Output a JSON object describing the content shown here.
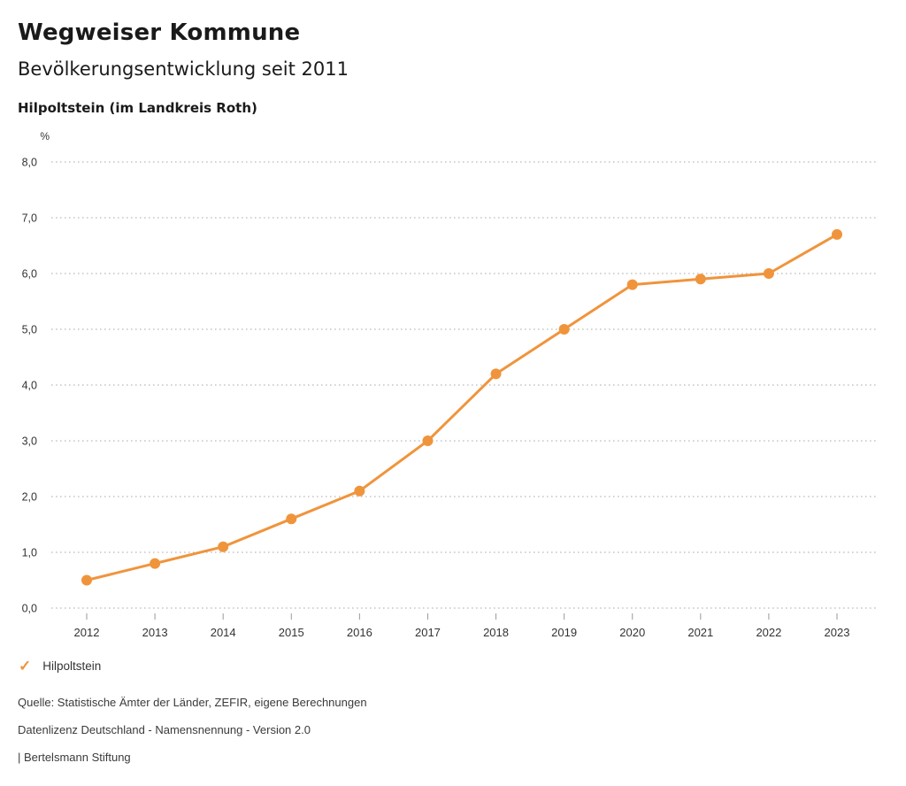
{
  "header": {
    "title": "Wegweiser Kommune",
    "subtitle": "Bevölkerungsentwicklung seit 2011",
    "region": "Hilpoltstein (im Landkreis Roth)"
  },
  "chart_data": {
    "type": "line",
    "title": "Bevölkerungsentwicklung seit 2011",
    "unit_label": "%",
    "categories": [
      "2012",
      "2013",
      "2014",
      "2015",
      "2016",
      "2017",
      "2018",
      "2019",
      "2020",
      "2021",
      "2022",
      "2023"
    ],
    "series": [
      {
        "name": "Hilpoltstein",
        "values": [
          0.5,
          0.8,
          1.1,
          1.6,
          2.1,
          3.0,
          4.2,
          5.0,
          5.8,
          5.9,
          6.0,
          6.7
        ],
        "color": "#F0943C"
      }
    ],
    "xlabel": "",
    "ylabel": "%",
    "ylim": [
      0,
      8
    ],
    "ytick_step": 1,
    "decimal_separator": ",",
    "grid": "horizontal-dotted",
    "legend_position": "bottom-left",
    "marker": "circle"
  },
  "legend": {
    "check_glyph": "✓",
    "items": [
      {
        "label": "Hilpoltstein",
        "color": "#F0943C"
      }
    ]
  },
  "footer": {
    "source": "Quelle: Statistische Ämter der Länder, ZEFIR, eigene Berechnungen",
    "license": "Datenlizenz Deutschland - Namensnennung - Version 2.0",
    "attribution": "| Bertelsmann Stiftung"
  },
  "colors": {
    "accent_orange": "#F0943C",
    "gridline": "#bbbbbb",
    "tick": "#999999",
    "axis_text": "#333333",
    "title_text": "#1a1a1a",
    "footer_text": "#3a3a3a",
    "background": "#ffffff"
  }
}
